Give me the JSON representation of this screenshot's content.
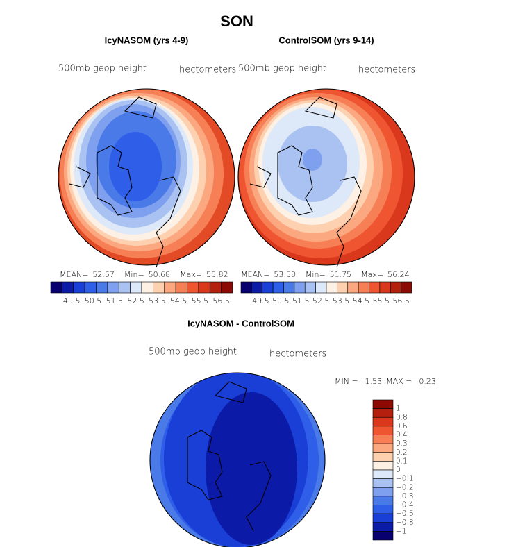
{
  "title": "SON",
  "panels": [
    {
      "title": "IcyNASOM (yrs 4-9)",
      "field": "500mb geop height",
      "units": "hectometers",
      "stats": [
        {
          "label": "MEAN=",
          "value": 52.67
        },
        {
          "label": "Min=",
          "value": 50.68
        },
        {
          "label": "Max=",
          "value": 55.82
        }
      ]
    },
    {
      "title": "ControlSOM (yrs 9-14)",
      "field": "500mb geop height",
      "units": "hectometers",
      "stats": [
        {
          "label": "MEAN=",
          "value": 53.58
        },
        {
          "label": "Min=",
          "value": 51.75
        },
        {
          "label": "Max=",
          "value": 56.24
        }
      ]
    }
  ],
  "colorbar": {
    "colors": [
      "#08006e",
      "#0c1aa8",
      "#1a3fd6",
      "#2f5ee8",
      "#4a7ae8",
      "#7fa0ee",
      "#a9c2f2",
      "#dde8f8",
      "#fdf0e4",
      "#fdd0b0",
      "#fba880",
      "#f77f55",
      "#ef5530",
      "#d9381c",
      "#b5200e",
      "#8c0a04"
    ],
    "labels": [
      "49.5",
      "50.5",
      "51.5",
      "52.5",
      "53.5",
      "54.5",
      "55.5",
      "56.5"
    ]
  },
  "difference": {
    "title": "IcyNASOM - ControlSOM",
    "field": "500mb geop height",
    "units": "hectometers",
    "stats": [
      {
        "label": "MIN =",
        "value": -1.53
      },
      {
        "label": "MAX =",
        "value": -0.23
      }
    ],
    "colorbar": {
      "colors": [
        "#8c0a04",
        "#b5200e",
        "#d9381c",
        "#ef5530",
        "#f77f55",
        "#fba880",
        "#fdd0b0",
        "#fdf0e4",
        "#dde8f8",
        "#a9c2f2",
        "#7fa0ee",
        "#4a7ae8",
        "#2f5ee8",
        "#1a3fd6",
        "#0c1aa8",
        "#08006e"
      ],
      "labels": [
        "1",
        "0.8",
        "0.6",
        "0.4",
        "0.3",
        "0.2",
        "0.1",
        "0",
        "−0.1",
        "−0.2",
        "−0.3",
        "−0.4",
        "−0.6",
        "−0.8",
        "−1"
      ]
    }
  }
}
